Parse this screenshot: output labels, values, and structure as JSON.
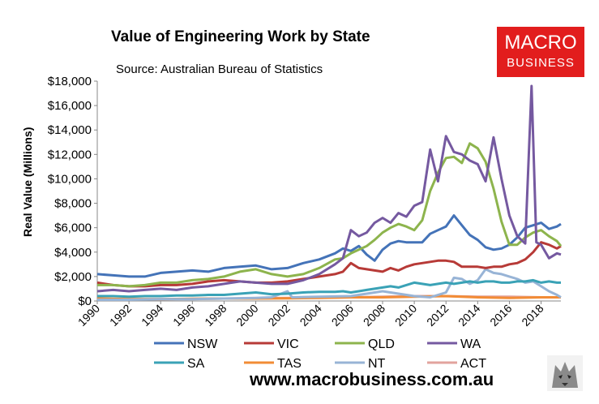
{
  "header": {
    "title": "Value of Engineering Work by State",
    "subtitle": "Source: Australian Bureau of Statistics"
  },
  "logo": {
    "line1": "MACRO",
    "line2": "BUSINESS"
  },
  "footer": {
    "website": "www.macrobusiness.com.au"
  },
  "colors": {
    "NSW": "#4473b8",
    "VIC": "#b73a37",
    "QLD": "#8db44d",
    "WA": "#7559a0",
    "SA": "#3aa2b6",
    "TAS": "#f28c36",
    "NT": "#98b4d6",
    "ACT": "#e2a39e"
  },
  "chart_data": {
    "type": "line",
    "title": "Value of Engineering Work by State",
    "ylabel": "Real Value (Millions)",
    "xlabel": "",
    "ylim": [
      0,
      18000
    ],
    "xlim": [
      1990,
      2019.25
    ],
    "y_ticks": [
      "$0",
      "$2,000",
      "$4,000",
      "$6,000",
      "$8,000",
      "$10,000",
      "$12,000",
      "$14,000",
      "$16,000",
      "$18,000"
    ],
    "x_ticks": [
      "1990",
      "1992",
      "1994",
      "1996",
      "1998",
      "2000",
      "2002",
      "2004",
      "2006",
      "2008",
      "2010",
      "2012",
      "2014",
      "2016",
      "2018"
    ],
    "legend_position": "bottom",
    "grid": false,
    "series": [
      {
        "name": "NSW",
        "color": "#4473b8",
        "points": [
          [
            1990,
            2200
          ],
          [
            1991,
            2100
          ],
          [
            1992,
            2000
          ],
          [
            1993,
            2000
          ],
          [
            1994,
            2300
          ],
          [
            1995,
            2400
          ],
          [
            1996,
            2500
          ],
          [
            1997,
            2400
          ],
          [
            1998,
            2700
          ],
          [
            1999,
            2800
          ],
          [
            2000,
            2900
          ],
          [
            2001,
            2600
          ],
          [
            2002,
            2700
          ],
          [
            2003,
            3100
          ],
          [
            2004,
            3400
          ],
          [
            2005,
            3900
          ],
          [
            2005.5,
            4300
          ],
          [
            2006,
            4100
          ],
          [
            2006.5,
            4500
          ],
          [
            2007,
            3800
          ],
          [
            2007.5,
            3300
          ],
          [
            2008,
            4200
          ],
          [
            2008.5,
            4700
          ],
          [
            2009,
            4900
          ],
          [
            2009.5,
            4800
          ],
          [
            2010,
            4800
          ],
          [
            2010.5,
            4800
          ],
          [
            2011,
            5500
          ],
          [
            2011.5,
            5800
          ],
          [
            2012,
            6100
          ],
          [
            2012.5,
            7000
          ],
          [
            2013,
            6200
          ],
          [
            2013.5,
            5400
          ],
          [
            2014,
            5000
          ],
          [
            2014.5,
            4400
          ],
          [
            2015,
            4200
          ],
          [
            2015.5,
            4300
          ],
          [
            2016,
            4600
          ],
          [
            2016.5,
            5200
          ],
          [
            2017,
            6000
          ],
          [
            2017.5,
            6200
          ],
          [
            2018,
            6400
          ],
          [
            2018.5,
            5900
          ],
          [
            2019,
            6100
          ],
          [
            2019.25,
            6300
          ]
        ]
      },
      {
        "name": "VIC",
        "color": "#b73a37",
        "points": [
          [
            1990,
            1500
          ],
          [
            1991,
            1300
          ],
          [
            1992,
            1200
          ],
          [
            1993,
            1200
          ],
          [
            1994,
            1300
          ],
          [
            1995,
            1300
          ],
          [
            1996,
            1400
          ],
          [
            1997,
            1600
          ],
          [
            1998,
            1700
          ],
          [
            1999,
            1600
          ],
          [
            2000,
            1500
          ],
          [
            2001,
            1500
          ],
          [
            2002,
            1600
          ],
          [
            2003,
            1800
          ],
          [
            2004,
            2000
          ],
          [
            2005,
            2200
          ],
          [
            2005.5,
            2400
          ],
          [
            2006,
            3100
          ],
          [
            2006.5,
            2700
          ],
          [
            2007,
            2600
          ],
          [
            2007.5,
            2500
          ],
          [
            2008,
            2400
          ],
          [
            2008.5,
            2700
          ],
          [
            2009,
            2500
          ],
          [
            2009.5,
            2800
          ],
          [
            2010,
            3000
          ],
          [
            2010.5,
            3100
          ],
          [
            2011,
            3200
          ],
          [
            2011.5,
            3300
          ],
          [
            2012,
            3300
          ],
          [
            2012.5,
            3200
          ],
          [
            2013,
            2800
          ],
          [
            2013.5,
            2800
          ],
          [
            2014,
            2800
          ],
          [
            2014.5,
            2700
          ],
          [
            2015,
            2800
          ],
          [
            2015.5,
            2800
          ],
          [
            2016,
            3000
          ],
          [
            2016.5,
            3100
          ],
          [
            2017,
            3400
          ],
          [
            2017.5,
            4000
          ],
          [
            2018,
            4800
          ],
          [
            2018.5,
            4600
          ],
          [
            2019,
            4300
          ],
          [
            2019.25,
            4500
          ]
        ]
      },
      {
        "name": "QLD",
        "color": "#8db44d",
        "points": [
          [
            1990,
            1300
          ],
          [
            1991,
            1300
          ],
          [
            1992,
            1200
          ],
          [
            1993,
            1300
          ],
          [
            1994,
            1500
          ],
          [
            1995,
            1500
          ],
          [
            1996,
            1700
          ],
          [
            1997,
            1800
          ],
          [
            1998,
            2000
          ],
          [
            1999,
            2400
          ],
          [
            2000,
            2600
          ],
          [
            2001,
            2200
          ],
          [
            2002,
            2000
          ],
          [
            2003,
            2200
          ],
          [
            2004,
            2700
          ],
          [
            2005,
            3400
          ],
          [
            2005.5,
            3500
          ],
          [
            2006,
            3900
          ],
          [
            2006.5,
            4200
          ],
          [
            2007,
            4500
          ],
          [
            2007.5,
            5000
          ],
          [
            2008,
            5600
          ],
          [
            2008.5,
            6000
          ],
          [
            2009,
            6300
          ],
          [
            2009.5,
            6100
          ],
          [
            2010,
            5800
          ],
          [
            2010.5,
            6600
          ],
          [
            2011,
            9000
          ],
          [
            2011.5,
            10500
          ],
          [
            2012,
            11700
          ],
          [
            2012.5,
            11800
          ],
          [
            2013,
            11300
          ],
          [
            2013.5,
            12900
          ],
          [
            2014,
            12500
          ],
          [
            2014.5,
            11400
          ],
          [
            2015,
            9200
          ],
          [
            2015.5,
            6500
          ],
          [
            2016,
            4600
          ],
          [
            2016.5,
            4600
          ],
          [
            2017,
            5200
          ],
          [
            2017.5,
            5600
          ],
          [
            2018,
            5800
          ],
          [
            2018.5,
            5300
          ],
          [
            2019,
            4900
          ],
          [
            2019.25,
            4500
          ]
        ]
      },
      {
        "name": "WA",
        "color": "#7559a0",
        "points": [
          [
            1990,
            800
          ],
          [
            1991,
            900
          ],
          [
            1992,
            800
          ],
          [
            1993,
            900
          ],
          [
            1994,
            1000
          ],
          [
            1995,
            900
          ],
          [
            1996,
            1100
          ],
          [
            1997,
            1200
          ],
          [
            1998,
            1400
          ],
          [
            1999,
            1600
          ],
          [
            2000,
            1500
          ],
          [
            2001,
            1400
          ],
          [
            2002,
            1400
          ],
          [
            2003,
            1700
          ],
          [
            2004,
            2200
          ],
          [
            2005,
            3000
          ],
          [
            2005.5,
            3500
          ],
          [
            2006,
            5800
          ],
          [
            2006.5,
            5300
          ],
          [
            2007,
            5600
          ],
          [
            2007.5,
            6400
          ],
          [
            2008,
            6800
          ],
          [
            2008.5,
            6400
          ],
          [
            2009,
            7200
          ],
          [
            2009.5,
            6900
          ],
          [
            2010,
            7800
          ],
          [
            2010.5,
            8100
          ],
          [
            2011,
            12400
          ],
          [
            2011.5,
            9800
          ],
          [
            2012,
            13500
          ],
          [
            2012.5,
            12200
          ],
          [
            2013,
            12000
          ],
          [
            2013.5,
            11500
          ],
          [
            2014,
            11200
          ],
          [
            2014.5,
            9800
          ],
          [
            2015,
            13400
          ],
          [
            2015.5,
            10000
          ],
          [
            2016,
            7000
          ],
          [
            2016.5,
            5300
          ],
          [
            2017,
            4700
          ],
          [
            2017.4,
            17600
          ],
          [
            2017.7,
            4800
          ],
          [
            2018,
            4600
          ],
          [
            2018.5,
            3500
          ],
          [
            2019,
            3900
          ],
          [
            2019.25,
            3800
          ]
        ]
      },
      {
        "name": "SA",
        "color": "#3aa2b6",
        "points": [
          [
            1990,
            400
          ],
          [
            1991,
            400
          ],
          [
            1992,
            350
          ],
          [
            1993,
            400
          ],
          [
            1994,
            400
          ],
          [
            1995,
            450
          ],
          [
            1996,
            450
          ],
          [
            1997,
            500
          ],
          [
            1998,
            500
          ],
          [
            1999,
            600
          ],
          [
            2000,
            700
          ],
          [
            2001,
            550
          ],
          [
            2002,
            600
          ],
          [
            2003,
            700
          ],
          [
            2004,
            750
          ],
          [
            2005,
            750
          ],
          [
            2005.5,
            800
          ],
          [
            2006,
            700
          ],
          [
            2006.5,
            800
          ],
          [
            2007,
            900
          ],
          [
            2007.5,
            1000
          ],
          [
            2008,
            1100
          ],
          [
            2008.5,
            1200
          ],
          [
            2009,
            1100
          ],
          [
            2009.5,
            1300
          ],
          [
            2010,
            1500
          ],
          [
            2010.5,
            1400
          ],
          [
            2011,
            1300
          ],
          [
            2011.5,
            1400
          ],
          [
            2012,
            1500
          ],
          [
            2012.5,
            1400
          ],
          [
            2013,
            1500
          ],
          [
            2013.5,
            1600
          ],
          [
            2014,
            1500
          ],
          [
            2014.5,
            1600
          ],
          [
            2015,
            1600
          ],
          [
            2015.5,
            1500
          ],
          [
            2016,
            1500
          ],
          [
            2016.5,
            1600
          ],
          [
            2017,
            1600
          ],
          [
            2017.5,
            1700
          ],
          [
            2018,
            1500
          ],
          [
            2018.5,
            1600
          ],
          [
            2019,
            1500
          ],
          [
            2019.25,
            1500
          ]
        ]
      },
      {
        "name": "TAS",
        "color": "#f28c36",
        "points": [
          [
            1990,
            200
          ],
          [
            1992,
            150
          ],
          [
            1994,
            150
          ],
          [
            1996,
            180
          ],
          [
            1998,
            200
          ],
          [
            2000,
            200
          ],
          [
            2002,
            220
          ],
          [
            2004,
            250
          ],
          [
            2006,
            300
          ],
          [
            2008,
            300
          ],
          [
            2010,
            350
          ],
          [
            2012,
            400
          ],
          [
            2014,
            300
          ],
          [
            2016,
            250
          ],
          [
            2018,
            300
          ],
          [
            2019.25,
            300
          ]
        ]
      },
      {
        "name": "NT",
        "color": "#98b4d6",
        "points": [
          [
            1990,
            100
          ],
          [
            1992,
            100
          ],
          [
            1994,
            150
          ],
          [
            1996,
            150
          ],
          [
            1998,
            200
          ],
          [
            2000,
            250
          ],
          [
            2001,
            300
          ],
          [
            2002,
            800
          ],
          [
            2002.3,
            300
          ],
          [
            2004,
            350
          ],
          [
            2006,
            400
          ],
          [
            2007,
            600
          ],
          [
            2008,
            800
          ],
          [
            2009,
            600
          ],
          [
            2010,
            400
          ],
          [
            2011,
            300
          ],
          [
            2012,
            700
          ],
          [
            2012.5,
            1900
          ],
          [
            2013,
            1800
          ],
          [
            2013.5,
            1400
          ],
          [
            2014,
            1700
          ],
          [
            2014.5,
            2600
          ],
          [
            2015,
            2300
          ],
          [
            2015.5,
            2200
          ],
          [
            2016,
            2000
          ],
          [
            2016.5,
            1800
          ],
          [
            2017,
            1500
          ],
          [
            2017.5,
            1600
          ],
          [
            2018,
            1200
          ],
          [
            2018.5,
            800
          ],
          [
            2019,
            500
          ],
          [
            2019.25,
            300
          ]
        ]
      },
      {
        "name": "ACT",
        "color": "#e2a39e",
        "points": [
          [
            1990,
            150
          ],
          [
            1994,
            150
          ],
          [
            1998,
            200
          ],
          [
            2002,
            250
          ],
          [
            2006,
            300
          ],
          [
            2008,
            350
          ],
          [
            2010,
            400
          ],
          [
            2012,
            400
          ],
          [
            2014,
            350
          ],
          [
            2016,
            350
          ],
          [
            2018,
            300
          ],
          [
            2019.25,
            300
          ]
        ]
      }
    ]
  }
}
